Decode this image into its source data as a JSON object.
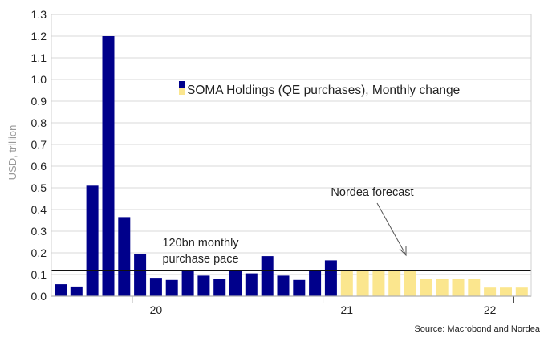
{
  "chart_data": {
    "type": "bar",
    "ylabel": "USD, trillion",
    "ylim": [
      0,
      1.3
    ],
    "yticks": [
      "0.0",
      "0.1",
      "0.2",
      "0.3",
      "0.4",
      "0.5",
      "0.6",
      "0.7",
      "0.8",
      "0.9",
      "1.0",
      "1.1",
      "1.2",
      "1.3"
    ],
    "xtick_labels": [
      "20",
      "21",
      "22"
    ],
    "grid": true,
    "legend": {
      "label": "SOMA Holdings (QE purchases), Monthly change",
      "colors": [
        "#00008b",
        "#fbe68e"
      ]
    },
    "series": [
      {
        "name": "SOMA Holdings (QE purchases), Monthly change",
        "color": "#00008b",
        "values": [
          0.055,
          0.045,
          0.51,
          1.2,
          0.365,
          0.195,
          0.085,
          0.075,
          0.12,
          0.095,
          0.08,
          0.115,
          0.105,
          0.185,
          0.095,
          0.075,
          0.12,
          0.165
        ]
      },
      {
        "name": "Nordea forecast",
        "color": "#fbe68e",
        "values": [
          0.12,
          0.12,
          0.12,
          0.12,
          0.12,
          0.08,
          0.08,
          0.08,
          0.08,
          0.04,
          0.04,
          0.04
        ]
      }
    ],
    "reference_line": {
      "value": 0.12,
      "label_line1": "120bn monthly",
      "label_line2": "purchase pace"
    },
    "annotation": {
      "text": "Nordea forecast"
    }
  },
  "source": "Source: Macrobond and Nordea"
}
